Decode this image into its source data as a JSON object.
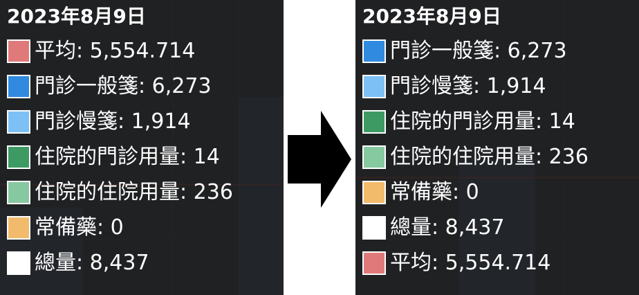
{
  "left_panel": {
    "date": "2023年8月9日",
    "items": [
      {
        "label": "平均: 5,554.714",
        "color": "#e07a7a"
      },
      {
        "label": "門診一般箋: 6,273",
        "color": "#2f8ae0"
      },
      {
        "label": "門診慢箋: 1,914",
        "color": "#7cc0f5"
      },
      {
        "label": "住院的門診用量: 14",
        "color": "#3e9a63"
      },
      {
        "label": "住院的住院用量: 236",
        "color": "#86c8a0"
      },
      {
        "label": "常備藥: 0",
        "color": "#f2bb6c"
      },
      {
        "label": "總量: 8,437",
        "color": "#ffffff"
      }
    ]
  },
  "right_panel": {
    "date": "2023年8月9日",
    "items": [
      {
        "label": "門診一般箋: 6,273",
        "color": "#2f8ae0"
      },
      {
        "label": "門診慢箋: 1,914",
        "color": "#7cc0f5"
      },
      {
        "label": "住院的門診用量: 14",
        "color": "#3e9a63"
      },
      {
        "label": "住院的住院用量: 236",
        "color": "#86c8a0"
      },
      {
        "label": "常備藥: 0",
        "color": "#f2bb6c"
      },
      {
        "label": "總量: 8,437",
        "color": "#ffffff"
      },
      {
        "label": "平均: 5,554.714",
        "color": "#e07a7a"
      }
    ]
  },
  "arrow_icon": "right-arrow-icon"
}
